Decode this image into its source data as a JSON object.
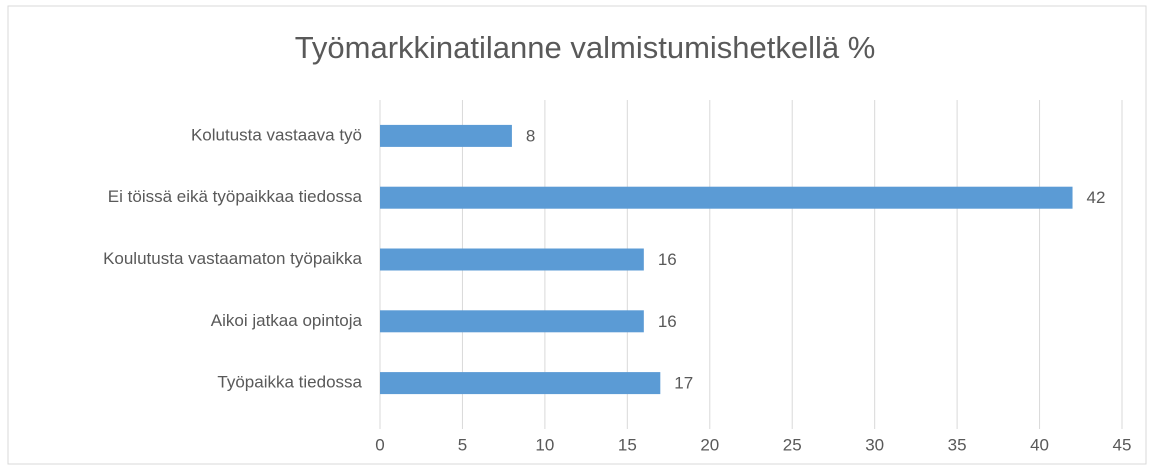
{
  "chart_data": {
    "type": "bar",
    "orientation": "horizontal",
    "title": "Työmarkkinatilanne valmistumishetkellä %",
    "categories": [
      "Kolutusta vastaava työ",
      "Ei töissä eikä työpaikkaa tiedossa",
      "Koulutusta vastaamaton työpaikka",
      "Aikoi jatkaa opintoja",
      "Työpaikka tiedossa"
    ],
    "values": [
      8,
      42,
      16,
      16,
      17
    ],
    "color": "#5b9bd5",
    "xlim": [
      0,
      45
    ],
    "xticks": [
      0,
      5,
      10,
      15,
      20,
      25,
      30,
      35,
      40,
      45
    ],
    "grid": true
  }
}
